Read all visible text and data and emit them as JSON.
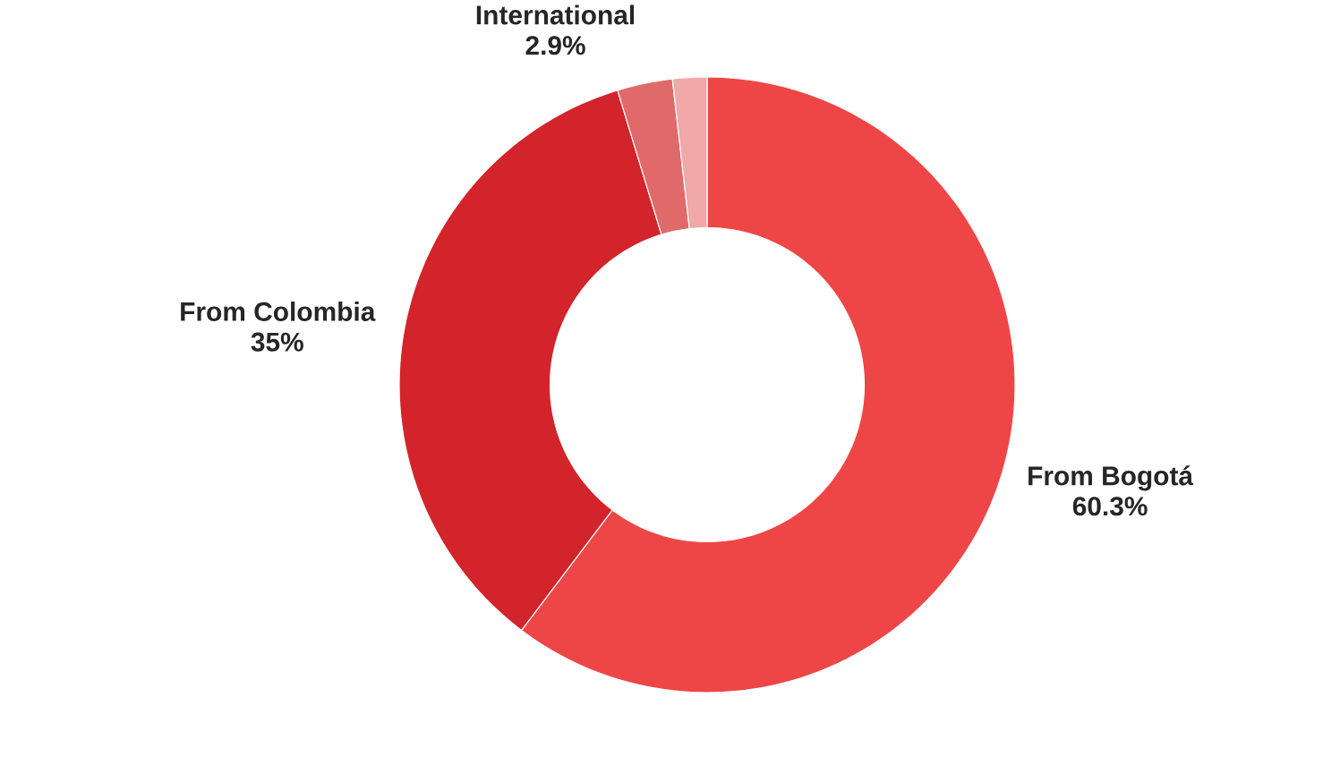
{
  "chart_data": {
    "type": "donut",
    "categories": [
      "From Bogotá",
      "From Colombia",
      "International",
      null
    ],
    "values": [
      60.3,
      35,
      2.9,
      1.8
    ],
    "value_labels": [
      "60.3%",
      "35%",
      "2.9%",
      null
    ],
    "colors": [
      "#ee4646",
      "#d2242a",
      "#e06a6a",
      "#f0a8a8"
    ]
  }
}
